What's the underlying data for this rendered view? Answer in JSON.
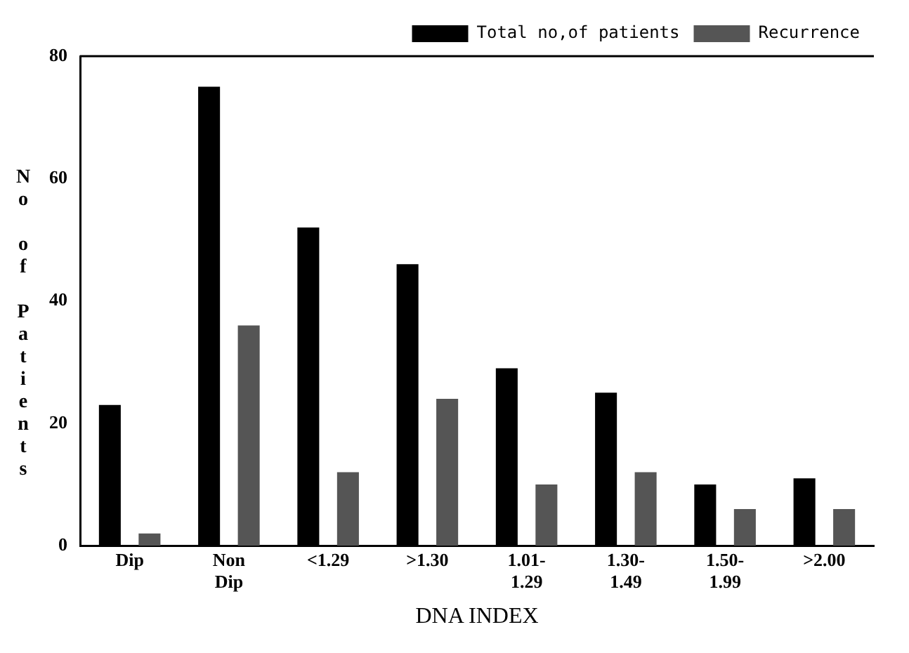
{
  "chart_data": {
    "type": "bar",
    "xlabel": "DNA INDEX",
    "ylabel": "No of Patients",
    "categories": [
      "Dip",
      "Non\nDip",
      "<1.29",
      ">1.30",
      "1.01-\n1.29",
      "1.30-\n1.49",
      "1.50-\n1.99",
      ">2.00"
    ],
    "series": [
      {
        "name": "Total no,of patients",
        "color": "#000000",
        "values": [
          23,
          75,
          52,
          46,
          29,
          25,
          10,
          11
        ]
      },
      {
        "name": "Recurrence",
        "color": "#555555",
        "values": [
          2,
          36,
          12,
          24,
          10,
          12,
          6,
          6
        ]
      }
    ],
    "ylim": [
      0,
      80
    ],
    "yticks": [
      0,
      20,
      40,
      60,
      80
    ],
    "grid": false,
    "legend": "top right"
  }
}
